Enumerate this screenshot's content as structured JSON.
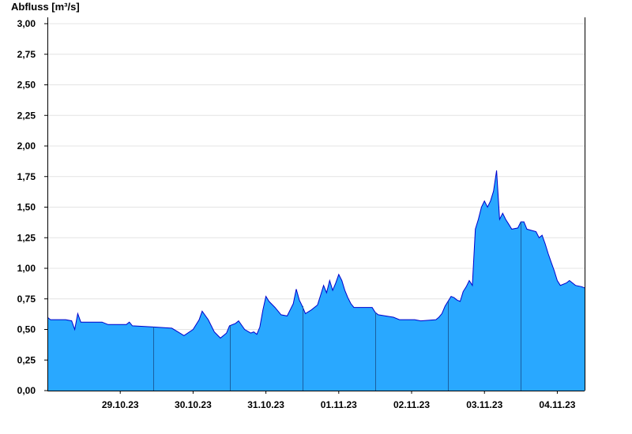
{
  "chart_data": {
    "type": "area",
    "title": "",
    "ylabel": "Abfluss [m³/s]",
    "xlabel": "",
    "ylim": [
      0,
      3
    ],
    "yticks": [
      "0,00",
      "0,25",
      "0,50",
      "0,75",
      "1,00",
      "1,25",
      "1,50",
      "1,75",
      "2,00",
      "2,25",
      "2,50",
      "2,75",
      "3,00"
    ],
    "x_range": [
      "28.10.23 12:00",
      "04.11.23 21:00"
    ],
    "xtick_labels": [
      "29.10.23",
      "30.10.23",
      "31.10.23",
      "01.11.23",
      "02.11.23",
      "03.11.23",
      "04.11.23"
    ],
    "day_boundaries": [
      "29.10.23 23:00",
      "31.10.23 00:00",
      "01.11.23 00:00",
      "02.11.23 00:00",
      "03.11.23 00:00",
      "04.11.23 00:00"
    ],
    "grid": true,
    "fill_color": "#29a8ff",
    "line_color": "#0000cc",
    "series": [
      {
        "values": [
          [
            "28.10.23 12:00",
            0.6
          ],
          [
            "28.10.23 13:00",
            0.58
          ],
          [
            "28.10.23 18:00",
            0.58
          ],
          [
            "28.10.23 20:00",
            0.57
          ],
          [
            "28.10.23 21:00",
            0.5
          ],
          [
            "28.10.23 22:00",
            0.63
          ],
          [
            "28.10.23 23:00",
            0.56
          ],
          [
            "29.10.23 06:00",
            0.56
          ],
          [
            "29.10.23 08:00",
            0.54
          ],
          [
            "29.10.23 14:00",
            0.54
          ],
          [
            "29.10.23 15:00",
            0.56
          ],
          [
            "29.10.23 16:00",
            0.53
          ],
          [
            "29.10.23 23:00",
            0.52
          ],
          [
            "30.10.23 05:00",
            0.51
          ],
          [
            "30.10.23 07:00",
            0.48
          ],
          [
            "30.10.23 09:00",
            0.45
          ],
          [
            "30.10.23 12:00",
            0.5
          ],
          [
            "30.10.23 14:00",
            0.58
          ],
          [
            "30.10.23 15:00",
            0.65
          ],
          [
            "30.10.23 17:00",
            0.58
          ],
          [
            "30.10.23 19:00",
            0.48
          ],
          [
            "30.10.23 21:00",
            0.43
          ],
          [
            "30.10.23 23:00",
            0.47
          ],
          [
            "31.10.23 00:00",
            0.53
          ],
          [
            "31.10.23 02:00",
            0.55
          ],
          [
            "31.10.23 03:00",
            0.57
          ],
          [
            "31.10.23 05:00",
            0.5
          ],
          [
            "31.10.23 07:00",
            0.47
          ],
          [
            "31.10.23 08:00",
            0.48
          ],
          [
            "31.10.23 09:00",
            0.46
          ],
          [
            "31.10.23 10:00",
            0.52
          ],
          [
            "31.10.23 11:00",
            0.66
          ],
          [
            "31.10.23 12:00",
            0.77
          ],
          [
            "31.10.23 13:00",
            0.73
          ],
          [
            "31.10.23 15:00",
            0.68
          ],
          [
            "31.10.23 17:00",
            0.62
          ],
          [
            "31.10.23 19:00",
            0.61
          ],
          [
            "31.10.23 20:00",
            0.66
          ],
          [
            "31.10.23 21:00",
            0.71
          ],
          [
            "31.10.23 22:00",
            0.83
          ],
          [
            "31.10.23 23:00",
            0.74
          ],
          [
            "01.11.23 00:00",
            0.69
          ],
          [
            "01.11.23 01:00",
            0.63
          ],
          [
            "01.11.23 03:00",
            0.66
          ],
          [
            "01.11.23 05:00",
            0.7
          ],
          [
            "01.11.23 06:00",
            0.78
          ],
          [
            "01.11.23 07:00",
            0.86
          ],
          [
            "01.11.23 08:00",
            0.8
          ],
          [
            "01.11.23 09:00",
            0.9
          ],
          [
            "01.11.23 10:00",
            0.82
          ],
          [
            "01.11.23 11:00",
            0.88
          ],
          [
            "01.11.23 12:00",
            0.95
          ],
          [
            "01.11.23 13:00",
            0.9
          ],
          [
            "01.11.23 14:00",
            0.82
          ],
          [
            "01.11.23 15:00",
            0.76
          ],
          [
            "01.11.23 16:00",
            0.71
          ],
          [
            "01.11.23 17:00",
            0.68
          ],
          [
            "01.11.23 23:00",
            0.68
          ],
          [
            "02.11.23 00:00",
            0.64
          ],
          [
            "02.11.23 01:00",
            0.62
          ],
          [
            "02.11.23 06:00",
            0.6
          ],
          [
            "02.11.23 08:00",
            0.58
          ],
          [
            "02.11.23 13:00",
            0.58
          ],
          [
            "02.11.23 15:00",
            0.57
          ],
          [
            "02.11.23 20:00",
            0.58
          ],
          [
            "02.11.23 21:00",
            0.6
          ],
          [
            "02.11.23 22:00",
            0.63
          ],
          [
            "02.11.23 23:00",
            0.69
          ],
          [
            "03.11.23 00:00",
            0.73
          ],
          [
            "03.11.23 01:00",
            0.77
          ],
          [
            "03.11.23 02:00",
            0.76
          ],
          [
            "03.11.23 03:00",
            0.74
          ],
          [
            "03.11.23 04:00",
            0.73
          ],
          [
            "03.11.23 05:00",
            0.81
          ],
          [
            "03.11.23 06:00",
            0.85
          ],
          [
            "03.11.23 07:00",
            0.9
          ],
          [
            "03.11.23 08:00",
            0.86
          ],
          [
            "03.11.23 09:00",
            1.32
          ],
          [
            "03.11.23 10:00",
            1.4
          ],
          [
            "03.11.23 11:00",
            1.5
          ],
          [
            "03.11.23 12:00",
            1.55
          ],
          [
            "03.11.23 13:00",
            1.5
          ],
          [
            "03.11.23 14:00",
            1.55
          ],
          [
            "03.11.23 15:00",
            1.63
          ],
          [
            "03.11.23 16:00",
            1.8
          ],
          [
            "03.11.23 17:00",
            1.4
          ],
          [
            "03.11.23 18:00",
            1.45
          ],
          [
            "03.11.23 19:00",
            1.4
          ],
          [
            "03.11.23 20:00",
            1.36
          ],
          [
            "03.11.23 21:00",
            1.32
          ],
          [
            "03.11.23 23:00",
            1.33
          ],
          [
            "04.11.23 00:00",
            1.38
          ],
          [
            "04.11.23 01:00",
            1.38
          ],
          [
            "04.11.23 02:00",
            1.32
          ],
          [
            "04.11.23 05:00",
            1.3
          ],
          [
            "04.11.23 06:00",
            1.25
          ],
          [
            "04.11.23 07:00",
            1.27
          ],
          [
            "04.11.23 08:00",
            1.2
          ],
          [
            "04.11.23 09:00",
            1.12
          ],
          [
            "04.11.23 10:00",
            1.05
          ],
          [
            "04.11.23 11:00",
            0.98
          ],
          [
            "04.11.23 12:00",
            0.9
          ],
          [
            "04.11.23 13:00",
            0.86
          ],
          [
            "04.11.23 15:00",
            0.88
          ],
          [
            "04.11.23 16:00",
            0.9
          ],
          [
            "04.11.23 18:00",
            0.86
          ],
          [
            "04.11.23 20:00",
            0.85
          ],
          [
            "04.11.23 21:00",
            0.84
          ]
        ]
      }
    ]
  }
}
